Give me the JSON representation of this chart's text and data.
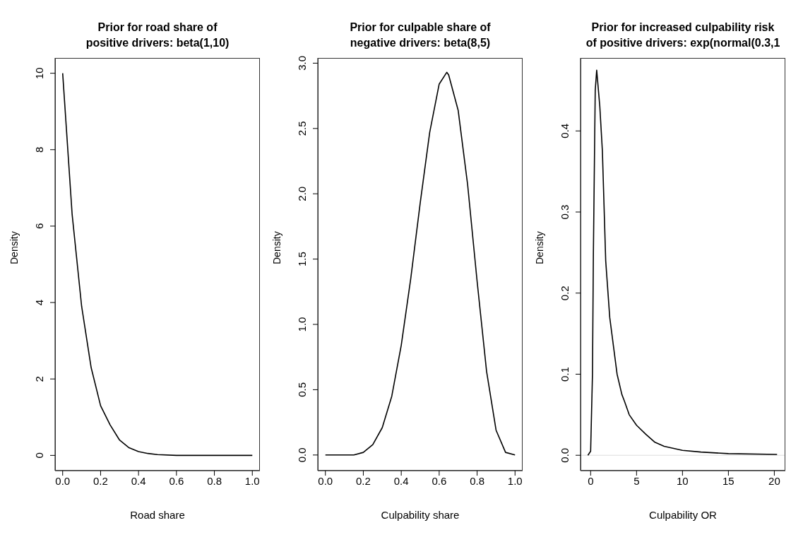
{
  "chart_data": [
    {
      "type": "line",
      "title": "Prior for road share of\npositive drivers: beta(1,10)",
      "xlabel": "Road share",
      "ylabel": "Density",
      "color": "#000000",
      "x": [
        0,
        0.05,
        0.1,
        0.15,
        0.2,
        0.25,
        0.3,
        0.35,
        0.4,
        0.45,
        0.5,
        0.6,
        0.7,
        0.8,
        0.9,
        1.0
      ],
      "values": [
        10,
        6.3,
        3.9,
        2.3,
        1.3,
        0.8,
        0.4,
        0.2,
        0.1,
        0.05,
        0.02,
        0,
        0,
        0,
        0,
        0
      ],
      "xlim": [
        -0.04,
        1.04
      ],
      "ylim": [
        -0.4,
        10.4
      ],
      "xticks": [
        {
          "value": 0,
          "label": "0.0"
        },
        {
          "value": 0.2,
          "label": "0.2"
        },
        {
          "value": 0.4,
          "label": "0.4"
        },
        {
          "value": 0.6,
          "label": "0.6"
        },
        {
          "value": 0.8,
          "label": "0.8"
        },
        {
          "value": 1,
          "label": "1.0"
        }
      ],
      "yticks": [
        0,
        2,
        4,
        6,
        8,
        10
      ]
    },
    {
      "type": "line",
      "title": "Prior for culpable share of\nnegative drivers: beta(8,5)",
      "xlabel": "Culpability share",
      "ylabel": "Density",
      "color": "#000000",
      "x": [
        0,
        0.1,
        0.15,
        0.2,
        0.25,
        0.3,
        0.35,
        0.4,
        0.45,
        0.5,
        0.55,
        0.6,
        0.64,
        0.65,
        0.7,
        0.75,
        0.8,
        0.85,
        0.9,
        0.95,
        1.0
      ],
      "values": [
        0,
        0,
        0,
        0.02,
        0.08,
        0.21,
        0.45,
        0.84,
        1.35,
        1.93,
        2.47,
        2.84,
        2.93,
        2.91,
        2.64,
        2.07,
        1.33,
        0.64,
        0.19,
        0.02,
        0
      ],
      "xlim": [
        -0.04,
        1.04
      ],
      "ylim": [
        -0.12,
        3.04
      ],
      "xticks": [
        {
          "value": 0,
          "label": "0.0"
        },
        {
          "value": 0.2,
          "label": "0.2"
        },
        {
          "value": 0.4,
          "label": "0.4"
        },
        {
          "value": 0.6,
          "label": "0.6"
        },
        {
          "value": 0.8,
          "label": "0.8"
        },
        {
          "value": 1,
          "label": "1.0"
        }
      ],
      "yticks": [
        {
          "value": 0,
          "label": "0.0"
        },
        {
          "value": 0.5,
          "label": "0.5"
        },
        {
          "value": 1,
          "label": "1.0"
        },
        {
          "value": 1.5,
          "label": "1.5"
        },
        {
          "value": 2,
          "label": "2.0"
        },
        {
          "value": 2.5,
          "label": "2.5"
        },
        {
          "value": 3,
          "label": "3.0"
        }
      ]
    },
    {
      "type": "line",
      "title": "Prior for increased culpability risk\nof positive drivers: exp(normal(0.3,1",
      "xlabel": "Culpability OR",
      "ylabel": "Density",
      "color": "#000000",
      "x": [
        -0.3,
        0,
        0.2,
        0.3,
        0.5,
        0.66,
        1.0,
        1.28,
        1.64,
        2.08,
        2.88,
        3.4,
        3.67,
        4.2,
        5,
        6,
        7,
        8,
        10,
        12,
        15,
        20.3
      ],
      "values": [
        0,
        0.005,
        0.1,
        0.25,
        0.45,
        0.475,
        0.43,
        0.375,
        0.24,
        0.17,
        0.1,
        0.075,
        0.067,
        0.05,
        0.037,
        0.026,
        0.016,
        0.011,
        0.006,
        0.004,
        0.002,
        0.001
      ],
      "xlim": [
        -1.1,
        21.2
      ],
      "ylim": [
        -0.019,
        0.49
      ],
      "xticks": [
        0,
        5,
        10,
        15,
        20
      ],
      "yticks": [
        {
          "value": 0,
          "label": "0.0"
        },
        {
          "value": 0.1,
          "label": "0.1"
        },
        {
          "value": 0.2,
          "label": "0.2"
        },
        {
          "value": 0.3,
          "label": "0.3"
        },
        {
          "value": 0.4,
          "label": "0.4"
        }
      ],
      "ref_lines": [
        {
          "axis": "y",
          "value": 0,
          "color": "#dddddd"
        }
      ]
    }
  ]
}
